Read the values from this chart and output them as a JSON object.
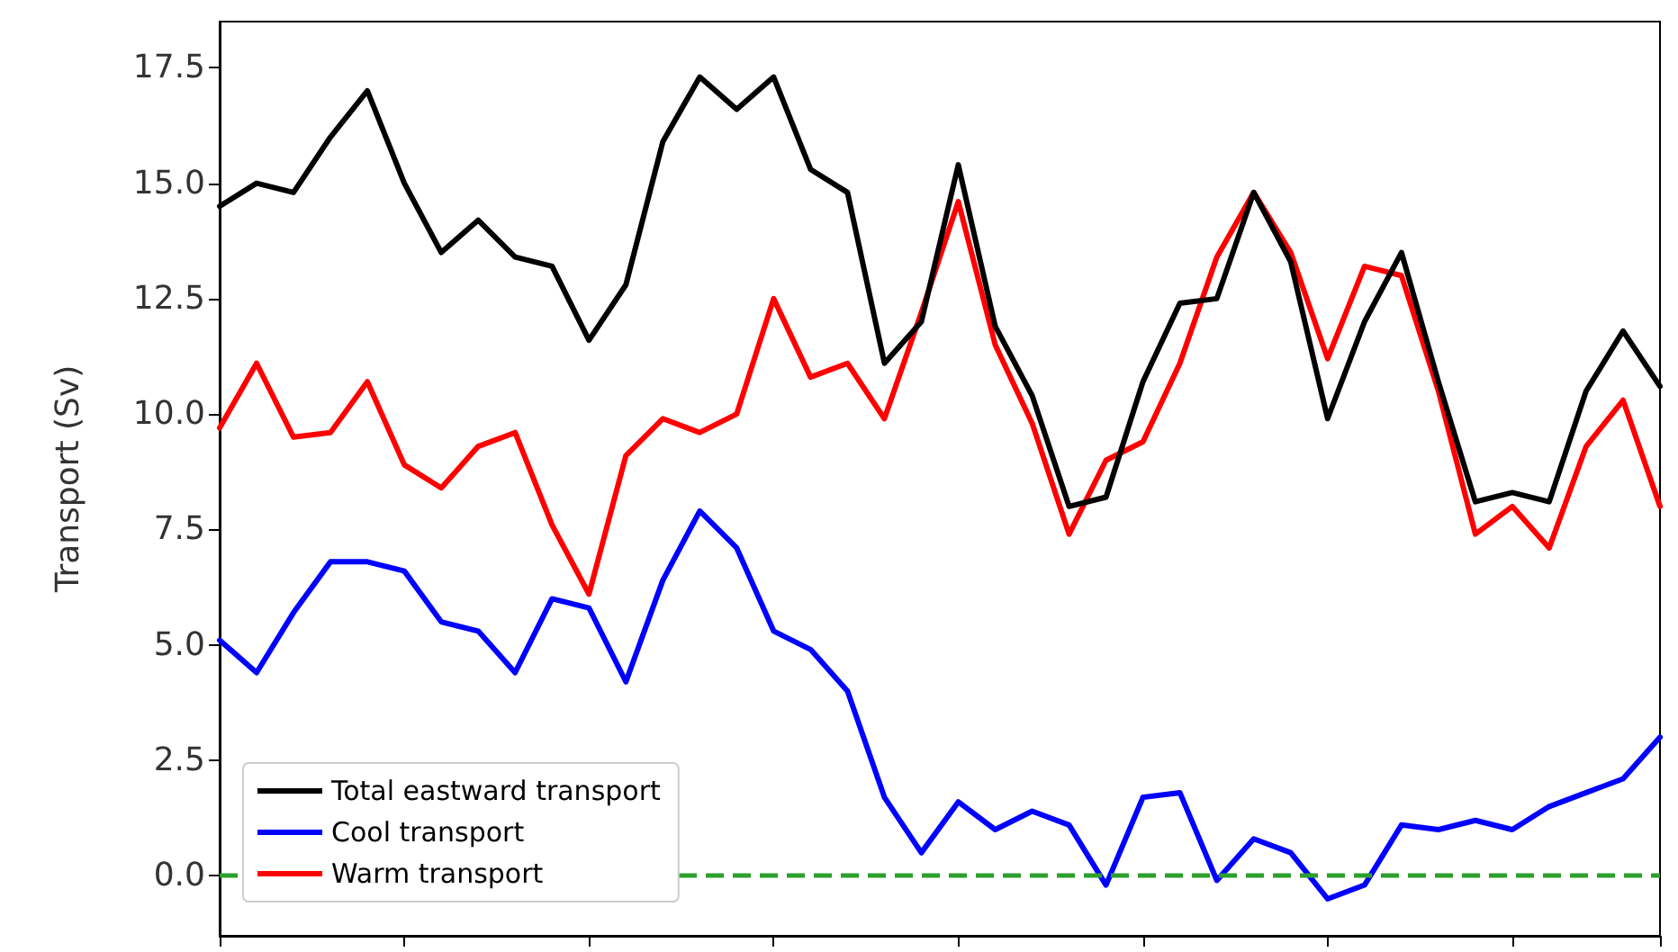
{
  "chart_data": {
    "type": "line",
    "ylabel": "Transport (Sv)",
    "categories": [
      null,
      null,
      null,
      null,
      null,
      null,
      null,
      null,
      null,
      null,
      null,
      null,
      null,
      null,
      null,
      null,
      null,
      null,
      null,
      null,
      null,
      null,
      null,
      null,
      null,
      null,
      null,
      null,
      null,
      null,
      null,
      null,
      null,
      null,
      null,
      null,
      null,
      null,
      null,
      null
    ],
    "series": [
      {
        "name": "Total eastward transport",
        "color": "#000000",
        "values": [
          14.5,
          15.0,
          14.8,
          16.0,
          17.0,
          15.0,
          13.5,
          14.2,
          13.4,
          13.2,
          11.6,
          12.8,
          15.9,
          17.3,
          16.6,
          17.3,
          15.3,
          14.8,
          11.1,
          12.0,
          15.4,
          11.9,
          10.4,
          8.0,
          8.2,
          10.7,
          12.4,
          12.5,
          14.8,
          13.3,
          9.9,
          12.0,
          13.5,
          10.7,
          8.1,
          8.3,
          8.1,
          10.5,
          11.8,
          10.6
        ]
      },
      {
        "name": "Cool transport",
        "color": "#0000ff",
        "values": [
          5.1,
          4.4,
          5.7,
          6.8,
          6.8,
          6.6,
          5.5,
          5.3,
          4.4,
          6.0,
          5.8,
          4.2,
          6.4,
          7.9,
          7.1,
          5.3,
          4.9,
          4.0,
          1.7,
          0.5,
          1.6,
          1.0,
          1.4,
          1.1,
          -0.2,
          1.7,
          1.8,
          -0.1,
          0.8,
          0.5,
          -0.5,
          -0.2,
          1.1,
          1.0,
          1.2,
          1.0,
          1.5,
          1.8,
          2.1,
          3.0
        ]
      },
      {
        "name": "Warm transport",
        "color": "#ff0000",
        "values": [
          9.7,
          11.1,
          9.5,
          9.6,
          10.7,
          8.9,
          8.4,
          9.3,
          9.6,
          7.6,
          6.1,
          9.1,
          9.9,
          9.6,
          10.0,
          12.5,
          10.8,
          11.1,
          9.9,
          12.2,
          14.6,
          11.5,
          9.8,
          7.4,
          9.0,
          9.4,
          11.1,
          13.4,
          14.8,
          13.5,
          11.2,
          13.2,
          13.0,
          10.5,
          7.4,
          8.0,
          7.1,
          9.3,
          10.3,
          8.0
        ]
      }
    ],
    "ylim": [
      -1.3,
      18.5
    ],
    "yticks": [
      {
        "value": 0,
        "label": "0.0"
      },
      {
        "value": 2.5,
        "label": "2.5"
      },
      {
        "value": 5,
        "label": "5.0"
      },
      {
        "value": 7.5,
        "label": "7.5"
      },
      {
        "value": 10,
        "label": "10.0"
      },
      {
        "value": 12.5,
        "label": "12.5"
      },
      {
        "value": 15,
        "label": "15.0"
      },
      {
        "value": 17.5,
        "label": "17.5"
      }
    ],
    "ref_lines": [
      {
        "axis": "y",
        "value": 0,
        "color": "#2ca02c",
        "line_style": "dashed"
      }
    ],
    "grid": false,
    "legend": "bottom left",
    "marker": "none",
    "line_style": "solid",
    "tick_labels": "y"
  }
}
